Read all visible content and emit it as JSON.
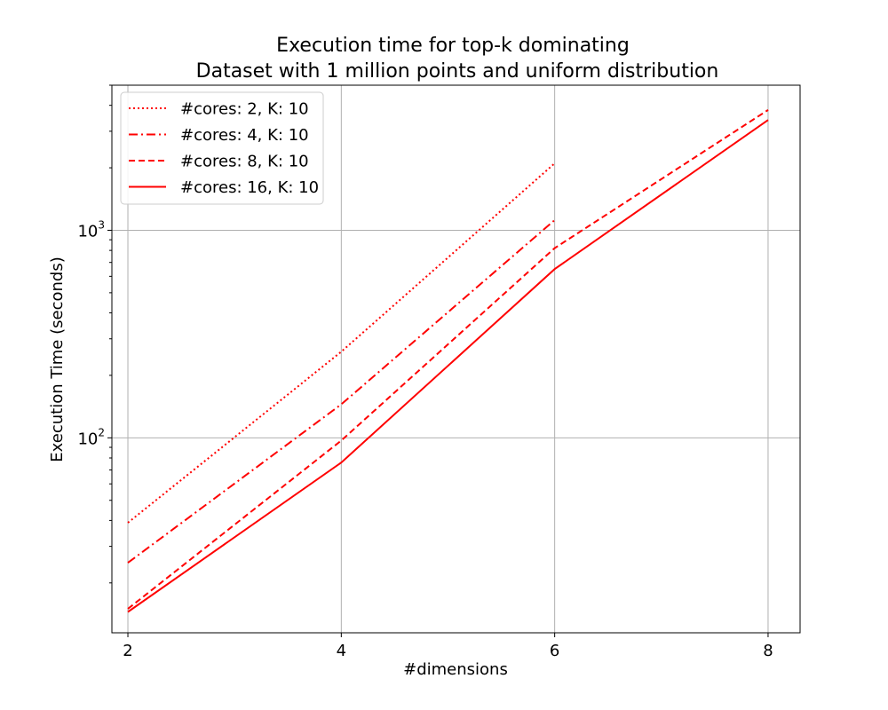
{
  "chart_data": {
    "type": "line",
    "title": "Execution time for top-k dominating",
    "subtitle": "Dataset with 1 million points and uniform distribution",
    "xlabel": "#dimensions",
    "ylabel": "Execution Time (seconds)",
    "x_scale": "linear",
    "y_scale": "log",
    "xlim": [
      1.85,
      8.3
    ],
    "ylim": [
      11.5,
      5000
    ],
    "x_ticks": [
      2,
      4,
      6,
      8
    ],
    "y_ticks": [
      {
        "value": 100,
        "base": "10",
        "exp": "2"
      },
      {
        "value": 1000,
        "base": "10",
        "exp": "3"
      }
    ],
    "grid": true,
    "legend_position": "top-left",
    "color": "#ff0000",
    "series": [
      {
        "name": "#cores: 2, K: 10",
        "dash": "dotted",
        "x": [
          2,
          4,
          6
        ],
        "values": [
          39,
          260,
          2100
        ]
      },
      {
        "name": "#cores: 4, K: 10",
        "dash": "dashdot",
        "x": [
          2,
          4,
          6
        ],
        "values": [
          25,
          145,
          1120
        ]
      },
      {
        "name": "#cores: 8, K: 10",
        "dash": "dashed",
        "x": [
          2,
          4,
          6,
          8
        ],
        "values": [
          15,
          97,
          820,
          3800
        ]
      },
      {
        "name": "#cores: 16, K: 10",
        "dash": "solid",
        "x": [
          2,
          4,
          6,
          8
        ],
        "values": [
          14.5,
          76,
          650,
          3400
        ]
      }
    ]
  }
}
